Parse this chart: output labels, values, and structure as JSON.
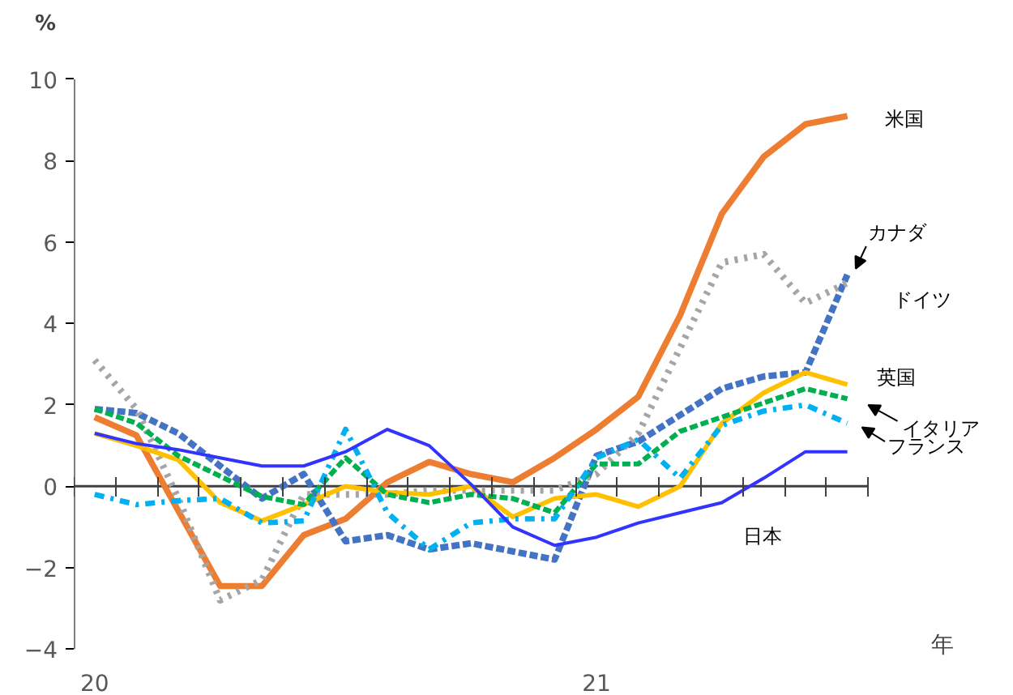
{
  "chart_data": {
    "type": "line",
    "ylabel": "%",
    "xlabel": "年",
    "categories": [
      "20",
      null,
      null,
      null,
      null,
      null,
      null,
      null,
      null,
      null,
      null,
      null,
      "21",
      null,
      null,
      null,
      null,
      null,
      null
    ],
    "ylim": [
      -4,
      10
    ],
    "yticks": [
      -4,
      -2,
      0,
      2,
      4,
      6,
      8,
      10
    ],
    "series": [
      {
        "name": "米国",
        "color": "#ed7d31",
        "line_style": "solid",
        "values": [
          1.7,
          1.25,
          -0.6,
          -2.45,
          -2.45,
          -1.2,
          -0.8,
          0.1,
          0.6,
          0.3,
          0.1,
          0.7,
          1.4,
          2.2,
          4.2,
          6.7,
          8.1,
          8.9,
          9.1
        ]
      },
      {
        "name": "カナダ",
        "color": "#4472c4",
        "line_style": "dashed",
        "values": [
          1.9,
          1.8,
          1.3,
          0.5,
          -0.3,
          0.3,
          -1.35,
          -1.2,
          -1.55,
          -1.4,
          -1.6,
          -1.8,
          0.75,
          1.1,
          1.75,
          2.4,
          2.7,
          2.8,
          5.2
        ]
      },
      {
        "name": "ドイツ",
        "color": "#a5a5a5",
        "line_style": "dotted",
        "values": [
          3.1,
          1.9,
          -0.3,
          -2.8,
          -2.3,
          -0.2,
          -0.2,
          -0.2,
          -0.1,
          -0.1,
          -0.1,
          -0.1,
          0.3,
          1.3,
          3.4,
          5.5,
          5.7,
          4.5,
          5.0
        ]
      },
      {
        "name": "英国",
        "color": "#ffc000",
        "line_style": "solid",
        "values": [
          1.3,
          1.0,
          0.65,
          -0.4,
          -0.85,
          -0.45,
          0.0,
          -0.15,
          -0.2,
          0.0,
          -0.75,
          -0.3,
          -0.2,
          -0.5,
          0.0,
          1.55,
          2.3,
          2.8,
          2.5
        ]
      },
      {
        "name": "イタリア",
        "color": "#00b050",
        "line_style": "dashed",
        "values": [
          1.9,
          1.55,
          0.75,
          0.25,
          -0.25,
          -0.45,
          0.7,
          -0.2,
          -0.4,
          -0.2,
          -0.3,
          -0.65,
          0.55,
          0.55,
          1.35,
          1.7,
          2.05,
          2.4,
          2.15
        ]
      },
      {
        "name": "フランス",
        "color": "#00b0f0",
        "line_style": "dashdot",
        "values": [
          -0.2,
          -0.45,
          -0.35,
          -0.3,
          -0.9,
          -0.85,
          1.4,
          -0.65,
          -1.55,
          -0.9,
          -0.8,
          -0.8,
          0.7,
          1.15,
          0.2,
          1.5,
          1.85,
          2.0,
          1.55
        ]
      },
      {
        "name": "日本",
        "color": "#3333ff",
        "line_style": "solid",
        "values": [
          1.3,
          1.05,
          0.9,
          0.7,
          0.5,
          0.5,
          0.85,
          1.4,
          1.0,
          0.05,
          -1.0,
          -1.45,
          -1.25,
          -0.9,
          -0.65,
          -0.4,
          0.2,
          0.85,
          0.85
        ]
      }
    ]
  }
}
